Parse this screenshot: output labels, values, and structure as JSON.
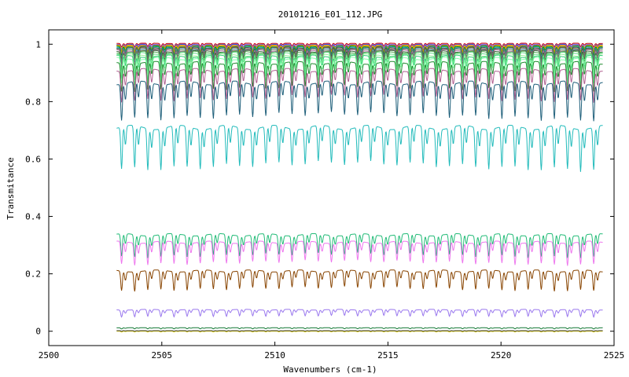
{
  "chart_data": {
    "type": "line",
    "title": "20101216_E01_112.JPG",
    "xlabel": "Wavenumbers (cm-1)",
    "ylabel": "Transmitance",
    "xlim": [
      2500,
      2525
    ],
    "ylim": [
      -0.05,
      1.05
    ],
    "x_ticks": [
      2500,
      2505,
      2510,
      2515,
      2520,
      2525
    ],
    "y_ticks": [
      0,
      0.2,
      0.4,
      0.6,
      0.8,
      1
    ],
    "y_tick_labels": [
      "0",
      "0.2",
      "0.4",
      "0.6",
      "0.8",
      "1"
    ],
    "x_range_data": [
      2503.0,
      2524.5
    ],
    "line_spacing_cm1": 0.58,
    "grid": false,
    "legend": "none",
    "series": [
      {
        "color": "#cc0000",
        "baseline": 1.003,
        "depth": 0.012
      },
      {
        "color": "#9966cc",
        "baseline": 1.0,
        "depth": 0.015
      },
      {
        "color": "#2255ee",
        "baseline": 0.998,
        "depth": 0.02
      },
      {
        "color": "#ee8800",
        "baseline": 0.996,
        "depth": 0.022
      },
      {
        "color": "#ddaa00",
        "baseline": 0.994,
        "depth": 0.025
      },
      {
        "color": "#008800",
        "baseline": 0.992,
        "depth": 0.03
      },
      {
        "color": "#00aaaa",
        "baseline": 0.99,
        "depth": 0.035
      },
      {
        "color": "#444444",
        "baseline": 0.988,
        "depth": 0.04
      },
      {
        "color": "#886644",
        "baseline": 0.986,
        "depth": 0.045
      },
      {
        "color": "#4488aa",
        "baseline": 0.984,
        "depth": 0.05
      },
      {
        "color": "#667755",
        "baseline": 0.981,
        "depth": 0.055
      },
      {
        "color": "#aa6699",
        "baseline": 0.978,
        "depth": 0.06
      },
      {
        "color": "#336633",
        "baseline": 0.975,
        "depth": 0.065
      },
      {
        "color": "#55aa55",
        "baseline": 0.972,
        "depth": 0.07
      },
      {
        "color": "#66dd88",
        "baseline": 0.968,
        "depth": 0.075
      },
      {
        "color": "#99ee99",
        "baseline": 0.962,
        "depth": 0.08
      },
      {
        "color": "#33cc77",
        "baseline": 0.958,
        "depth": 0.085
      },
      {
        "color": "#88ffaa",
        "baseline": 0.95,
        "depth": 0.09
      },
      {
        "color": "#1f8a2e",
        "baseline": 0.935,
        "depth": 0.1
      },
      {
        "color": "#b06090",
        "baseline": 0.91,
        "depth": 0.11
      },
      {
        "color": "#1e5f7a",
        "baseline": 0.865,
        "depth": 0.13
      },
      {
        "color": "#22bbbb",
        "baseline": 0.71,
        "depth": 0.15
      },
      {
        "color": "#22bb77",
        "baseline": 0.336,
        "depth": 0.08
      },
      {
        "color": "#ee77ee",
        "baseline": 0.31,
        "depth": 0.08
      },
      {
        "color": "#884400",
        "baseline": 0.21,
        "depth": 0.07
      },
      {
        "color": "#9977ee",
        "baseline": 0.075,
        "depth": 0.025
      },
      {
        "color": "#117733",
        "baseline": 0.012,
        "depth": 0.004
      },
      {
        "color": "#eedd22",
        "baseline": 0.0,
        "depth": 0.003
      },
      {
        "color": "#333333",
        "baseline": 0.002,
        "depth": 0.002
      }
    ]
  }
}
